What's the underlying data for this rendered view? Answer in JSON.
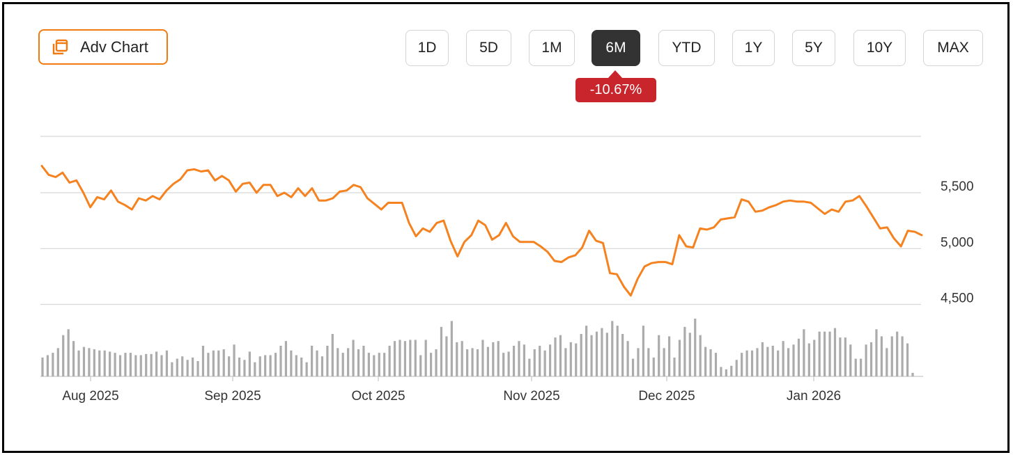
{
  "toolbar": {
    "adv_chart_label": "Adv Chart",
    "adv_chart_icon": "chart-window-icon",
    "ranges": [
      "1D",
      "5D",
      "1M",
      "6M",
      "YTD",
      "1Y",
      "5Y",
      "10Y",
      "MAX"
    ],
    "active_range": "6M",
    "change_badge": "-10.67%"
  },
  "colors": {
    "accent": "#f07a10",
    "line": "#f5821f",
    "badge": "#c8262c",
    "active_button": "#333333",
    "volume": "#ababab",
    "grid": "#d6d6d6"
  },
  "chart_data": {
    "type": "line",
    "title": "",
    "xlabel": "",
    "ylabel": "",
    "x_tick_labels": [
      "Aug 2025",
      "Sep 2025",
      "Oct 2025",
      "Nov 2025",
      "Dec 2025",
      "Jan 2026"
    ],
    "y_tick_labels": [
      "5,500",
      "5,000",
      "4,500"
    ],
    "y_ticks": [
      5500,
      5000,
      4500
    ],
    "ylim": [
      4500,
      6000
    ],
    "y_axis_side": "right",
    "grid": true,
    "series": [
      {
        "values": [
          5740,
          5660,
          5640,
          5680,
          5590,
          5610,
          5500,
          5370,
          5460,
          5440,
          5520,
          5420,
          5390,
          5350,
          5450,
          5430,
          5470,
          5440,
          5520,
          5580,
          5620,
          5700,
          5710,
          5690,
          5700,
          5610,
          5650,
          5610,
          5510,
          5580,
          5590,
          5500,
          5570,
          5570,
          5470,
          5500,
          5460,
          5540,
          5470,
          5540,
          5430,
          5430,
          5450,
          5510,
          5520,
          5570,
          5550,
          5450,
          5400,
          5350,
          5410,
          5410,
          5410,
          5230,
          5110,
          5180,
          5150,
          5230,
          5250,
          5070,
          4930,
          5060,
          5120,
          5250,
          5210,
          5080,
          5120,
          5230,
          5110,
          5060,
          5060,
          5060,
          5020,
          4970,
          4890,
          4880,
          4920,
          4940,
          5010,
          5160,
          5070,
          5050,
          4780,
          4770,
          4660,
          4580,
          4730,
          4840,
          4870,
          4880,
          4880,
          4860,
          5120,
          5020,
          5010,
          5180,
          5170,
          5190,
          5260,
          5270,
          5280,
          5440,
          5420,
          5330,
          5340,
          5370,
          5390,
          5420,
          5430,
          5420,
          5420,
          5410,
          5360,
          5310,
          5350,
          5330,
          5420,
          5430,
          5470,
          5380,
          5280,
          5180,
          5190,
          5090,
          5020,
          5160,
          5150,
          5120
        ]
      }
    ],
    "volume": {
      "values": [
        16,
        18,
        20,
        24,
        35,
        40,
        30,
        22,
        25,
        24,
        23,
        22,
        22,
        21,
        20,
        18,
        20,
        20,
        18,
        18,
        19,
        19,
        21,
        18,
        22,
        12,
        15,
        17,
        14,
        16,
        13,
        26,
        20,
        22,
        22,
        23,
        17,
        27,
        16,
        14,
        21,
        12,
        17,
        18,
        18,
        20,
        26,
        30,
        22,
        18,
        16,
        12,
        26,
        22,
        17,
        26,
        36,
        24,
        20,
        24,
        31,
        23,
        26,
        20,
        18,
        20,
        20,
        26,
        30,
        31,
        30,
        31,
        31,
        18,
        31,
        20,
        23,
        42,
        34,
        47,
        29,
        30,
        23,
        24,
        23,
        31,
        25,
        29,
        30,
        20,
        21,
        26,
        30,
        27,
        15,
        23,
        26,
        22,
        27,
        33,
        35,
        24,
        29,
        28,
        36,
        43,
        35,
        38,
        41,
        37,
        47,
        43,
        36,
        30,
        15,
        24,
        43,
        24,
        16,
        35,
        24,
        34,
        16,
        31,
        42,
        37,
        49,
        35,
        25,
        23,
        20,
        8,
        6,
        9,
        14,
        20,
        22,
        22,
        24,
        29,
        25,
        26,
        22,
        30,
        24,
        27,
        32,
        40,
        28,
        31,
        38,
        38,
        38,
        41,
        33,
        33,
        27,
        15,
        15,
        27,
        29,
        40,
        34,
        24,
        34,
        38,
        34,
        28,
        3
      ]
    }
  }
}
